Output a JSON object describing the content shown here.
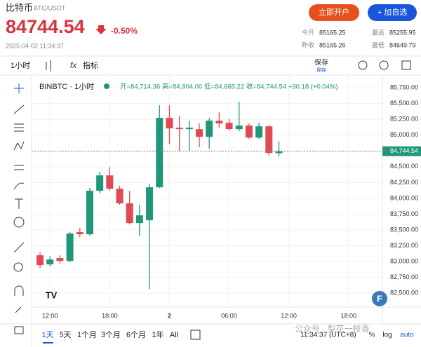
{
  "header": {
    "name": "比特币",
    "pair": "BTC/USDT",
    "price": "84744.54",
    "change": "-0.50%",
    "time": "2025-04-02 11:34:37",
    "buttons": [
      "立即开户",
      "+ 加自选"
    ],
    "stats": [
      [
        "今开",
        "85165.25"
      ],
      [
        "最高",
        "85255.95"
      ],
      [
        "昨收",
        "85165.26"
      ],
      [
        "最低",
        "84649.79"
      ]
    ]
  },
  "toolbar": {
    "interval": "1小时",
    "indicators": "指标",
    "save": "保存",
    "save_sub": "保存"
  },
  "bottom": {
    "ranges": [
      "1天",
      "5天",
      "1个月",
      "3个月",
      "6个月",
      "1年",
      "All"
    ],
    "clock": "11:34:37 (UTC+8)",
    "percent": "%",
    "log": "log",
    "auto": "auto"
  },
  "watermark": "公众号 · 梨花一枝香",
  "chart_data": {
    "type": "candlestick",
    "symbol": "BINBTC · 1小时",
    "legend": "开=84,714.36 高=84,904.00 低=84,665.22 收=84,744.54 +30.18 (+0.04%)",
    "open": [
      83099,
      82955,
      83055,
      83010,
      83465,
      83432,
      84119,
      84363,
      84152,
      83920,
      83609,
      83653,
      84175,
      85273,
      85117,
      85095,
      85095,
      84973,
      85228,
      85195,
      85095,
      85151,
      84962,
      85139,
      84714.36
    ],
    "high": [
      83143,
      83088,
      83099,
      83465,
      83531,
      84164,
      84419,
      84496,
      84197,
      84119,
      83897,
      84230,
      85472,
      85472,
      85306,
      85228,
      85184,
      85273,
      85361,
      85251,
      85528,
      85184,
      85195,
      85162,
      84904
    ],
    "low": [
      82899,
      82921,
      82966,
      82988,
      83387,
      83409,
      84086,
      84119,
      83897,
      83587,
      83409,
      82567,
      84164,
      84862,
      84751,
      84751,
      84807,
      84785,
      85117,
      85073,
      85062,
      84940,
      84940,
      84674,
      84665.22
    ],
    "close": [
      82944,
      83032,
      83010,
      83443,
      83432,
      84119,
      84363,
      84152,
      83920,
      83609,
      83731,
      84175,
      85273,
      85106,
      85095,
      85117,
      84973,
      85228,
      85184,
      85095,
      85151,
      84962,
      85139,
      84718,
      84744.54
    ],
    "up_color": "#22967a",
    "down_color": "#e04a52",
    "last_price": {
      "value": 84744.54,
      "label": "84,744.54"
    },
    "xlim": [
      -0.85,
      34.4
    ],
    "xticks": [
      {
        "value": 1,
        "label": "12:00"
      },
      {
        "value": 7,
        "label": "18:00"
      },
      {
        "value": 13,
        "label": "2"
      },
      {
        "value": 19,
        "label": "06:00"
      },
      {
        "value": 25,
        "label": "12:00"
      },
      {
        "value": 31,
        "label": "18:00"
      }
    ],
    "ylim": [
      82280,
      85940
    ],
    "yticks": [
      {
        "value": 82500,
        "label": "82,500.00"
      },
      {
        "value": 82750,
        "label": "82,750.00"
      },
      {
        "value": 83000,
        "label": "83,000.00"
      },
      {
        "value": 83250,
        "label": "83,250.00"
      },
      {
        "value": 83500,
        "label": "83,500.00"
      },
      {
        "value": 83750,
        "label": "83,750.00"
      },
      {
        "value": 84000,
        "label": "84,000.00"
      },
      {
        "value": 84250,
        "label": "84,250.00"
      },
      {
        "value": 84500,
        "label": "84,500.00"
      },
      {
        "value": 84750,
        "label": "84,750.00"
      },
      {
        "value": 85000,
        "label": "85,000.00"
      },
      {
        "value": 85250,
        "label": "85,250.00"
      },
      {
        "value": 85500,
        "label": "85,500.00"
      },
      {
        "value": 85750,
        "label": "85,750.00"
      }
    ],
    "grid": true
  }
}
